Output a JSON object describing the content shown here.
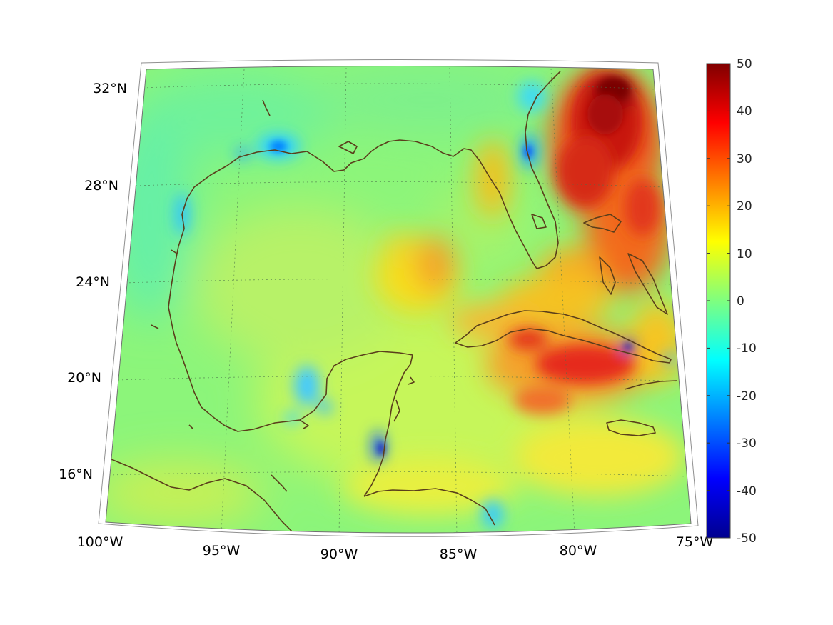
{
  "map": {
    "lon_labels": [
      "100°W",
      "95°W",
      "90°W",
      "85°W",
      "80°W",
      "75°W"
    ],
    "lat_labels": [
      "32°N",
      "28°N",
      "24°N",
      "20°N",
      "16°N"
    ],
    "lon_range": [
      -100,
      -75
    ],
    "lat_range": [
      14,
      33
    ],
    "grid": "dotted",
    "projection": "lambert-conic",
    "coastline_color": "#5a3e1b",
    "colormap": "jet"
  },
  "colorbar": {
    "ticks": [
      "50",
      "40",
      "30",
      "20",
      "10",
      "0",
      "-10",
      "-20",
      "-30",
      "-40",
      "-50"
    ],
    "range": [
      -50,
      50
    ]
  },
  "field_features": [
    {
      "region": "Atlantic east of Florida",
      "value": 40
    },
    {
      "region": "Southern Cuba / Caribbean",
      "value": 35
    },
    {
      "region": "Central Gulf of Mexico",
      "value": 18
    },
    {
      "region": "Texas-Louisiana coast",
      "value": -15
    },
    {
      "region": "Bay of Campeche",
      "value": -12
    }
  ]
}
